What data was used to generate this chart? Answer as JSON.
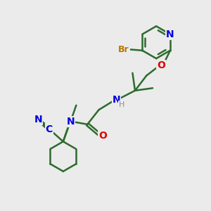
{
  "background_color": "#ebebeb",
  "bond_color": "#2d6b2d",
  "bond_width": 1.8,
  "atom_colors": {
    "N": "#0000e0",
    "O": "#e00000",
    "Br": "#b87800",
    "C": "#0000e0",
    "H": "#909090",
    "default": "#2d6b2d"
  },
  "font_size": 9,
  "figsize": [
    3.0,
    3.0
  ],
  "dpi": 100
}
